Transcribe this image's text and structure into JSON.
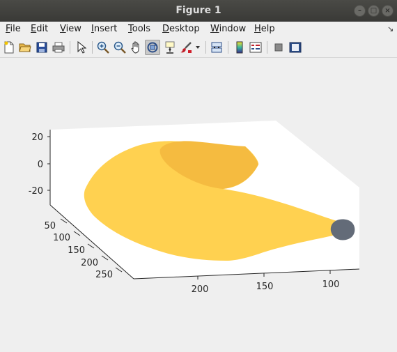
{
  "window": {
    "title": "Figure 1"
  },
  "menu": {
    "items": [
      {
        "accel": "F",
        "rest": "ile"
      },
      {
        "accel": "E",
        "rest": "dit"
      },
      {
        "accel": "V",
        "rest": "iew"
      },
      {
        "accel": "I",
        "rest": "nsert"
      },
      {
        "accel": "T",
        "rest": "ools"
      },
      {
        "accel": "D",
        "rest": "esktop"
      },
      {
        "accel": "W",
        "rest": "indow"
      },
      {
        "accel": "H",
        "rest": "elp"
      }
    ]
  },
  "toolbar": {
    "icons": [
      "new-figure-icon",
      "open-file-icon",
      "save-icon",
      "print-icon",
      "pointer-icon",
      "zoom-in-icon",
      "zoom-out-icon",
      "pan-hand-icon",
      "rotate-3d-icon",
      "data-cursor-icon",
      "brush-icon",
      "brush-dropdown-icon",
      "link-plot-icon",
      "colorbar-icon",
      "legend-icon",
      "hide-plot-tools-icon",
      "show-plot-tools-icon"
    ],
    "active": "rotate-3d-icon"
  },
  "colors": {
    "banana": "#ffd150",
    "banana_shade": "#f5bb40",
    "stem": "#636b78",
    "axes_bg": "#ffffff"
  },
  "chart_data": {
    "type": "surface",
    "title": "",
    "axes": {
      "z_ticks": [
        "20",
        "0",
        "-20"
      ],
      "y_ticks": [
        "50",
        "100",
        "150",
        "200",
        "250"
      ],
      "x_ticks": [
        "200",
        "150",
        "100"
      ]
    },
    "view": "3d-rotated",
    "grid": false
  }
}
